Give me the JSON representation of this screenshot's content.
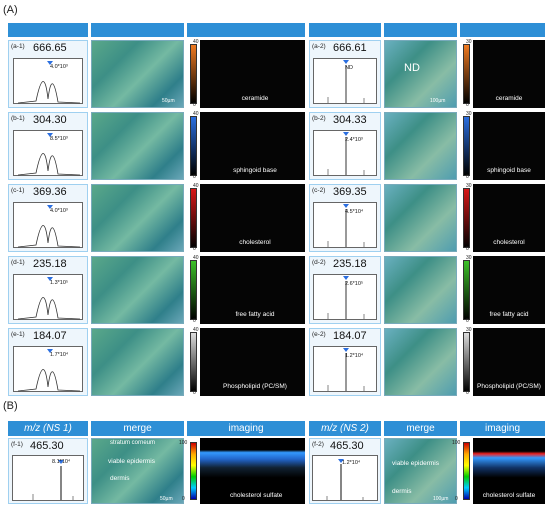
{
  "panelA": "(A)",
  "panelB": "(B)",
  "rows": [
    {
      "tag1": "(a-1)",
      "mz1": "666.65",
      "ann1": "4.0*10³",
      "tag2": "(a-2)",
      "mz2": "666.61",
      "ann2": "ND",
      "nd": "ND",
      "lipid": "ceramide",
      "cb1": "40",
      "cb2": "30",
      "cbz": "0",
      "sc1": "50µm",
      "sc2": "100µm",
      "c1": "#f07a20",
      "c2": "#f07a20"
    },
    {
      "tag1": "(b-1)",
      "mz1": "304.30",
      "ann1": "8.5*10³",
      "tag2": "(b-2)",
      "mz2": "304.33",
      "ann2": "2.4*10³",
      "lipid": "sphingoid base",
      "cb1": "40",
      "cb2": "30",
      "cbz": "0",
      "c1": "#2a6ee0",
      "c2": "#2a6ee0"
    },
    {
      "tag1": "(c-1)",
      "mz1": "369.36",
      "ann1": "4.0*10³",
      "tag2": "(c-2)",
      "mz2": "369.35",
      "ann2": "4.5*10⁴",
      "lipid": "cholesterol",
      "cb1": "40",
      "cb2": "30",
      "cbz": "0",
      "c1": "#d81818",
      "c2": "#d81818"
    },
    {
      "tag1": "(d-1)",
      "mz1": "235.18",
      "ann1": "1.3*10⁵",
      "tag2": "(d-2)",
      "mz2": "235.18",
      "ann2": "2.6*10⁵",
      "lipid": "free fatty acid",
      "cb1": "40",
      "cb2": "30",
      "cbz": "0",
      "c1": "#3cc028",
      "c2": "#3cc028"
    },
    {
      "tag1": "(e-1)",
      "mz1": "184.07",
      "ann1": "1.7*10⁴",
      "tag2": "(e-2)",
      "mz2": "184.07",
      "ann2": "1.2*10⁴",
      "lipid1": "Phospholipid (PC/SM)",
      "lipid2": "Phospholipid (PC/SM)",
      "cb1": "40",
      "cb2": "30",
      "cbz": "0",
      "c1": "#dddddd",
      "c2": "#dddddd"
    }
  ],
  "b": {
    "h_mz1": "m/z (NS 1)",
    "h_merge1": "merge",
    "h_img1": "imaging",
    "h_mz2": "m/z (NS 2)",
    "h_merge2": "merge",
    "h_img2": "imaging",
    "tag1": "(f-1)",
    "mz1": "465.30",
    "ann1": "8.1*10⁴",
    "tag2": "(f-2)",
    "mz2": "465.30",
    "ann2": "1.2*10⁴",
    "sc": "stratum corneum",
    "ve": "viable epidermis",
    "de": "dermis",
    "ve2": "viable epidermis",
    "de2": "dermis",
    "lipid": "cholesterol sulfate",
    "cbmax": "100",
    "cbmin": "0",
    "s1": "50µm",
    "s2": "100µm"
  }
}
